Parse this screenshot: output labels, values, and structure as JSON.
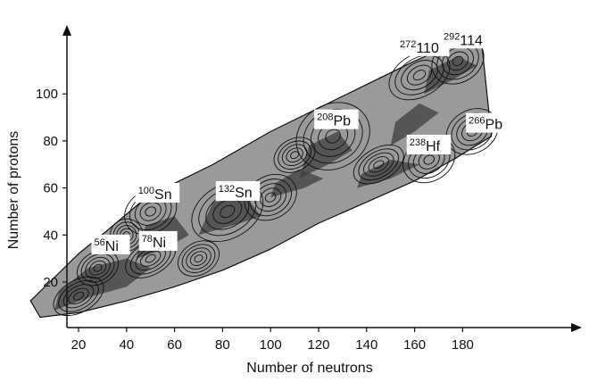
{
  "chart_data": {
    "type": "contour",
    "xlabel": "Number of neutrons",
    "ylabel": "Number of protons",
    "xlim": [
      0,
      200
    ],
    "ylim": [
      0,
      122
    ],
    "x_ticks": [
      20,
      40,
      60,
      80,
      100,
      120,
      140,
      160,
      180
    ],
    "y_ticks": [
      20,
      40,
      60,
      80,
      100
    ],
    "grid": false,
    "colors": {
      "band": "#9a9a9a",
      "dark": "#3e3e3e",
      "contour": "#111111",
      "axis": "#111111"
    },
    "annotations": [
      {
        "mass": "56",
        "element": "Ni",
        "n": 28,
        "z": 28
      },
      {
        "mass": "78",
        "element": "Ni",
        "n": 50,
        "z": 28
      },
      {
        "mass": "100",
        "element": "Sn",
        "n": 50,
        "z": 50
      },
      {
        "mass": "132",
        "element": "Sn",
        "n": 82,
        "z": 50
      },
      {
        "mass": "208",
        "element": "Pb",
        "n": 126,
        "z": 82
      },
      {
        "mass": "238",
        "element": "Hf",
        "n": 166,
        "z": 72
      },
      {
        "mass": "266",
        "element": "Pb",
        "n": 184,
        "z": 82
      },
      {
        "mass": "272",
        "element": "110",
        "n": 162,
        "z": 110
      },
      {
        "mass": "292",
        "element": "114",
        "n": 178,
        "z": 114
      }
    ]
  }
}
